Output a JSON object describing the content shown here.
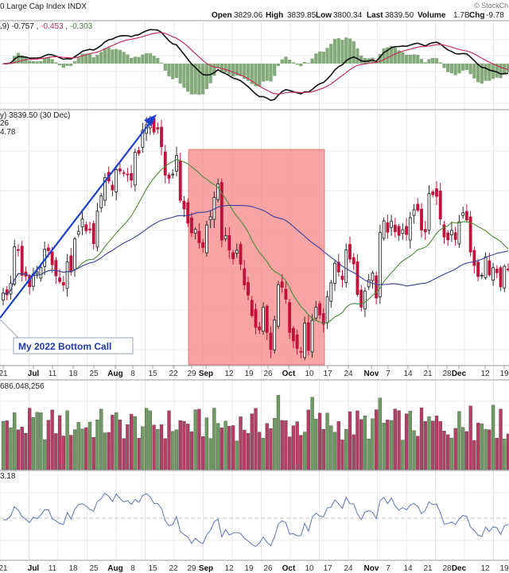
{
  "header": {
    "title": "0 Large Cap Index INDX",
    "open_label": "Open",
    "open": "3829.06",
    "high_label": "High",
    "high": "3839.85",
    "low_label": "Low",
    "low": "3800.34",
    "last_label": "Last",
    "last": "3839.50",
    "volume_label": "Volume",
    "volume": "1.7B",
    "chg_label": "Chg",
    "chg": "-9.78",
    "watermark": "© StockCh"
  },
  "macd_panel": {
    "label": ",9) -0.757, -0.453, -0.303",
    "label_parts": [
      ",9)",
      "-0.757",
      "-0.453",
      "-0.303"
    ]
  },
  "price_panel": {
    "label": "y) 3839.50 (30 Dec)",
    "sublabel1": "26",
    "sublabel2": "4.78",
    "annotation": "My 2022 Bottom Call"
  },
  "volume_panel": {
    "label": "686,048,256"
  },
  "bottom_panel": {
    "label": "3.18"
  },
  "x_axis_ticks": [
    "21",
    "Jul",
    "11",
    "18",
    "25",
    "Aug",
    "8",
    "15",
    "22",
    "29",
    "Sep",
    "12",
    "19",
    "26",
    "Oct",
    "10",
    "17",
    "24",
    "Nov",
    "7",
    "14",
    "21",
    "28",
    "Dec",
    "12",
    "19"
  ],
  "colors": {
    "up": "#4e7a45",
    "down": "#c0123a",
    "volume_up": "#6f9a63",
    "volume_down": "#b43f64",
    "highlight": "#f48a8a",
    "arrow": "#1f3fcf"
  },
  "chart_data": {
    "type": "candlestick",
    "x": [
      "Jun 21",
      "Jun 22",
      "Jun 23",
      "Jun 24",
      "Jun 27",
      "Jun 28",
      "Jun 29",
      "Jun 30",
      "Jul 1",
      "Jul 5",
      "Jul 6",
      "Jul 7",
      "Jul 8",
      "Jul 11",
      "Jul 12",
      "Jul 13",
      "Jul 14",
      "Jul 15",
      "Jul 18",
      "Jul 19",
      "Jul 20",
      "Jul 21",
      "Jul 22",
      "Jul 25",
      "Jul 26",
      "Jul 27",
      "Jul 28",
      "Jul 29",
      "Aug 1",
      "Aug 2",
      "Aug 3",
      "Aug 4",
      "Aug 5",
      "Aug 8",
      "Aug 9",
      "Aug 10",
      "Aug 11",
      "Aug 12",
      "Aug 15",
      "Aug 16",
      "Aug 17",
      "Aug 18",
      "Aug 19",
      "Aug 22",
      "Aug 23",
      "Aug 24",
      "Aug 25",
      "Aug 26",
      "Aug 29",
      "Aug 30",
      "Aug 31",
      "Sep 1",
      "Sep 2",
      "Sep 6",
      "Sep 7",
      "Sep 8",
      "Sep 9",
      "Sep 12",
      "Sep 13",
      "Sep 14",
      "Sep 15",
      "Sep 16",
      "Sep 19",
      "Sep 20",
      "Sep 21",
      "Sep 22",
      "Sep 23",
      "Sep 26",
      "Sep 27",
      "Sep 28",
      "Sep 29",
      "Sep 30",
      "Oct 3",
      "Oct 4",
      "Oct 5",
      "Oct 6",
      "Oct 7",
      "Oct 10",
      "Oct 11",
      "Oct 12",
      "Oct 13",
      "Oct 14",
      "Oct 17",
      "Oct 18",
      "Oct 19",
      "Oct 20",
      "Oct 21",
      "Oct 24",
      "Oct 25",
      "Oct 26",
      "Oct 27",
      "Oct 28",
      "Oct 31",
      "Nov 1",
      "Nov 2",
      "Nov 3",
      "Nov 4",
      "Nov 7",
      "Nov 8",
      "Nov 9",
      "Nov 10",
      "Nov 11",
      "Nov 14",
      "Nov 15",
      "Nov 16",
      "Nov 17",
      "Nov 18",
      "Nov 21",
      "Nov 22",
      "Nov 23",
      "Nov 25",
      "Nov 28",
      "Nov 29",
      "Nov 30",
      "Dec 1",
      "Dec 2",
      "Dec 5",
      "Dec 6",
      "Dec 7",
      "Dec 8",
      "Dec 9",
      "Dec 12",
      "Dec 13",
      "Dec 14",
      "Dec 15",
      "Dec 16",
      "Dec 19",
      "Dec 20",
      "Dec 21",
      "Dec 22",
      "Dec 23",
      "Dec 27",
      "Dec 28",
      "Dec 29",
      "Dec 30"
    ],
    "close": [
      3765,
      3759,
      3795,
      3911,
      3900,
      3821,
      3818,
      3785,
      3825,
      3831,
      3845,
      3903,
      3899,
      3854,
      3819,
      3801,
      3790,
      3863,
      3831,
      3936,
      3960,
      3999,
      3962,
      3967,
      3921,
      4024,
      4072,
      4130,
      4119,
      4091,
      4155,
      4151,
      4145,
      4140,
      4122,
      4210,
      4207,
      4280,
      4297,
      4305,
      4274,
      4284,
      4228,
      4138,
      4128,
      4141,
      4200,
      4058,
      4031,
      3986,
      3955,
      3966,
      3924,
      3909,
      3980,
      4006,
      4067,
      4110,
      3932,
      3946,
      3901,
      3873,
      3900,
      3856,
      3790,
      3758,
      3693,
      3656,
      3648,
      3719,
      3640,
      3586,
      3679,
      3791,
      3783,
      3745,
      3640,
      3613,
      3589,
      3577,
      3669,
      3583,
      3678,
      3720,
      3695,
      3666,
      3753,
      3797,
      3859,
      3831,
      3807,
      3901,
      3872,
      3857,
      3760,
      3720,
      3771,
      3806,
      3828,
      3749,
      3956,
      3993,
      3957,
      3992,
      3959,
      3947,
      3965,
      3950,
      4003,
      4028,
      4027,
      3964,
      3958,
      4080,
      4076,
      4071,
      3999,
      3942,
      3933,
      3963,
      3934,
      3990,
      4019,
      3996,
      3895,
      3852,
      3817,
      3821,
      3879,
      3822,
      3845,
      3829,
      3784,
      3849,
      3840
    ]
  }
}
